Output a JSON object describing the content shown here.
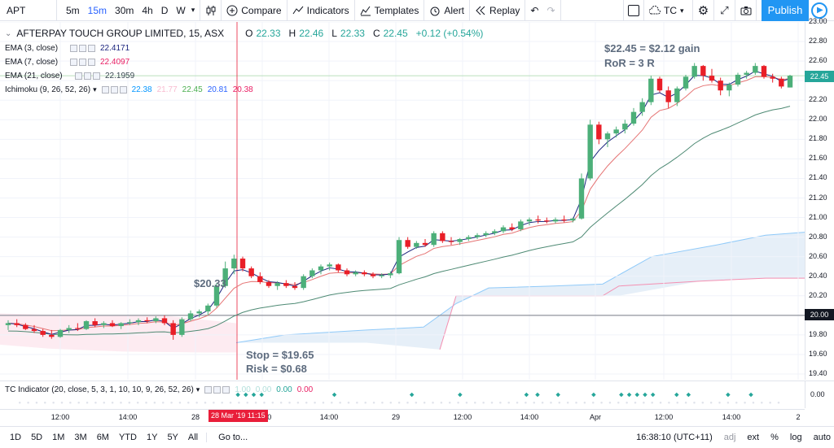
{
  "toolbar": {
    "symbol": "APT",
    "intervals": [
      "5m",
      "15m",
      "30m",
      "4h",
      "D",
      "W"
    ],
    "active_interval": "15m",
    "compare_label": "Compare",
    "indicators_label": "Indicators",
    "templates_label": "Templates",
    "alert_label": "Alert",
    "replay_label": "Replay",
    "account_label": "TC",
    "publish_label": "Publish"
  },
  "legend": {
    "title": "AFTERPAY TOUCH GROUP LIMITED, 15, ASX",
    "o_label": "O",
    "o": "22.33",
    "h_label": "H",
    "h": "22.46",
    "l_label": "L",
    "l": "22.33",
    "c_label": "C",
    "c": "22.45",
    "change": "+0.12 (+0.54%)",
    "ema3_label": "EMA (3, close)",
    "ema3": "22.4171",
    "ema3_color": "#1a237e",
    "ema7_label": "EMA (7, close)",
    "ema7": "22.4097",
    "ema7_color": "#e91e63",
    "ema21_label": "EMA (21, close)",
    "ema21": "22.1959",
    "ema21_color": "#37474f",
    "ichi_label": "Ichimoku (9, 26, 52, 26)",
    "ichi_vals": [
      "22.38",
      "21.77",
      "22.45",
      "20.81",
      "20.38"
    ],
    "ichi_colors": [
      "#0496ff",
      "#f8bbd0",
      "#4caf50",
      "#2962ff",
      "#e91e63"
    ]
  },
  "annotations": {
    "gain": "$22.45 = $2.12 gain",
    "ror": "RoR = 3 R",
    "entry": "$20.33",
    "stop": "Stop = $19.65",
    "risk": "Risk = $0.68"
  },
  "indicator": {
    "label": "TC Indicator (20, close, 5, 3, 1, 10, 10, 9, 26, 52, 26)",
    "vals": [
      "1.00",
      "0.00",
      "0.00",
      "0.00"
    ],
    "val_colors": [
      "#b2dfdb",
      "#b2dfdb",
      "#26a69a",
      "#e91e63"
    ],
    "axis": "0.00"
  },
  "price_axis": [
    "23.00",
    "22.80",
    "22.60",
    "22.40",
    "22.20",
    "22.00",
    "21.80",
    "21.60",
    "21.40",
    "21.20",
    "21.00",
    "20.80",
    "20.60",
    "20.40",
    "20.20",
    "20.00",
    "19.80",
    "19.60",
    "19.40"
  ],
  "price_tag_current": "22.45",
  "price_tag_line": "20.00",
  "time_axis": [
    "12:00",
    "14:00",
    "28",
    "10:00",
    "14:00",
    "29",
    "12:00",
    "14:00",
    "Apr",
    "12:00",
    "14:00",
    "2"
  ],
  "time_tag": "28 Mar '19  11:15",
  "bottom": {
    "ranges": [
      "1D",
      "5D",
      "1M",
      "3M",
      "6M",
      "YTD",
      "1Y",
      "5Y",
      "All"
    ],
    "goto": "Go to...",
    "clock": "16:38:10 (UTC+11)",
    "adj": "adj",
    "ext": "ext",
    "pct": "%",
    "log": "log",
    "auto": "auto"
  },
  "chart_data": {
    "type": "candlestick",
    "candles": [
      [
        19.9,
        19.95,
        19.85,
        19.92
      ],
      [
        19.92,
        19.96,
        19.88,
        19.9
      ],
      [
        19.9,
        19.92,
        19.85,
        19.86
      ],
      [
        19.86,
        19.9,
        19.82,
        19.84
      ],
      [
        19.84,
        19.86,
        19.78,
        19.8
      ],
      [
        19.8,
        19.85,
        19.76,
        19.78
      ],
      [
        19.78,
        19.86,
        19.77,
        19.85
      ],
      [
        19.85,
        19.9,
        19.82,
        19.87
      ],
      [
        19.87,
        19.92,
        19.84,
        19.86
      ],
      [
        19.86,
        19.95,
        19.85,
        19.94
      ],
      [
        19.94,
        19.97,
        19.88,
        19.9
      ],
      [
        19.9,
        19.94,
        19.87,
        19.92
      ],
      [
        19.92,
        19.95,
        19.88,
        19.89
      ],
      [
        19.89,
        19.93,
        19.86,
        19.92
      ],
      [
        19.92,
        19.96,
        19.9,
        19.93
      ],
      [
        19.93,
        19.97,
        19.9,
        19.95
      ],
      [
        19.95,
        19.98,
        19.92,
        19.94
      ],
      [
        19.94,
        19.99,
        19.92,
        19.97
      ],
      [
        19.97,
        20.0,
        19.9,
        19.92
      ],
      [
        19.92,
        19.95,
        19.75,
        19.8
      ],
      [
        19.8,
        19.98,
        19.78,
        19.96
      ],
      [
        19.96,
        20.05,
        19.94,
        20.02
      ],
      [
        20.02,
        20.06,
        19.98,
        20.04
      ],
      [
        20.04,
        20.12,
        20.0,
        20.1
      ],
      [
        20.1,
        20.33,
        20.08,
        20.3
      ],
      [
        20.3,
        20.55,
        20.28,
        20.48
      ],
      [
        20.48,
        20.62,
        20.42,
        20.58
      ],
      [
        20.58,
        20.6,
        20.45,
        20.48
      ],
      [
        20.48,
        20.5,
        20.38,
        20.4
      ],
      [
        20.4,
        20.44,
        20.32,
        20.34
      ],
      [
        20.34,
        20.36,
        20.28,
        20.3
      ],
      [
        20.3,
        20.35,
        20.26,
        20.33
      ],
      [
        20.33,
        20.36,
        20.28,
        20.3
      ],
      [
        20.3,
        20.34,
        20.26,
        20.28
      ],
      [
        20.28,
        20.42,
        20.26,
        20.4
      ],
      [
        20.4,
        20.48,
        20.38,
        20.46
      ],
      [
        20.46,
        20.52,
        20.42,
        20.5
      ],
      [
        20.5,
        20.54,
        20.46,
        20.52
      ],
      [
        20.52,
        20.53,
        20.44,
        20.46
      ],
      [
        20.46,
        20.48,
        20.4,
        20.42
      ],
      [
        20.42,
        20.46,
        20.4,
        20.44
      ],
      [
        20.44,
        20.46,
        20.4,
        20.42
      ],
      [
        20.42,
        20.44,
        20.38,
        20.4
      ],
      [
        20.4,
        20.43,
        20.38,
        20.41
      ],
      [
        20.41,
        20.45,
        20.38,
        20.43
      ],
      [
        20.43,
        20.8,
        20.42,
        20.77
      ],
      [
        20.77,
        20.8,
        20.68,
        20.7
      ],
      [
        20.7,
        20.76,
        20.68,
        20.74
      ],
      [
        20.74,
        20.78,
        20.7,
        20.72
      ],
      [
        20.72,
        20.86,
        20.7,
        20.84
      ],
      [
        20.84,
        20.86,
        20.74,
        20.76
      ],
      [
        20.76,
        20.8,
        20.72,
        20.75
      ],
      [
        20.75,
        20.79,
        20.72,
        20.78
      ],
      [
        20.78,
        20.82,
        20.76,
        20.8
      ],
      [
        20.8,
        20.84,
        20.78,
        20.82
      ],
      [
        20.82,
        20.86,
        20.8,
        20.84
      ],
      [
        20.84,
        20.88,
        20.82,
        20.86
      ],
      [
        20.86,
        20.92,
        20.84,
        20.9
      ],
      [
        20.9,
        20.94,
        20.86,
        20.88
      ],
      [
        20.88,
        20.98,
        20.86,
        20.96
      ],
      [
        20.96,
        21.0,
        20.92,
        20.98
      ],
      [
        20.98,
        21.02,
        20.94,
        20.97
      ],
      [
        20.97,
        21.0,
        20.94,
        20.96
      ],
      [
        20.96,
        21.0,
        20.94,
        20.98
      ],
      [
        20.98,
        21.02,
        20.95,
        20.97
      ],
      [
        20.97,
        21.0,
        20.95,
        20.99
      ],
      [
        20.99,
        21.45,
        20.98,
        21.4
      ],
      [
        21.4,
        22.0,
        21.38,
        21.95
      ],
      [
        21.95,
        21.98,
        21.75,
        21.8
      ],
      [
        21.8,
        21.88,
        21.72,
        21.86
      ],
      [
        21.86,
        21.93,
        21.82,
        21.9
      ],
      [
        21.9,
        22.0,
        21.86,
        21.96
      ],
      [
        21.96,
        22.12,
        21.94,
        22.08
      ],
      [
        22.08,
        22.22,
        22.04,
        22.18
      ],
      [
        22.18,
        22.45,
        22.15,
        22.42
      ],
      [
        22.42,
        22.44,
        22.28,
        22.3
      ],
      [
        22.3,
        22.34,
        22.12,
        22.18
      ],
      [
        22.18,
        22.34,
        22.14,
        22.32
      ],
      [
        22.32,
        22.46,
        22.3,
        22.44
      ],
      [
        22.44,
        22.58,
        22.42,
        22.55
      ],
      [
        22.55,
        22.56,
        22.4,
        22.45
      ],
      [
        22.45,
        22.52,
        22.38,
        22.4
      ],
      [
        22.4,
        22.43,
        22.25,
        22.3
      ],
      [
        22.3,
        22.38,
        22.24,
        22.36
      ],
      [
        22.36,
        22.48,
        22.34,
        22.46
      ],
      [
        22.46,
        22.5,
        22.42,
        22.48
      ],
      [
        22.48,
        22.58,
        22.46,
        22.55
      ],
      [
        22.55,
        22.56,
        22.42,
        22.44
      ],
      [
        22.44,
        22.47,
        22.38,
        22.42
      ],
      [
        22.42,
        22.44,
        22.32,
        22.34
      ],
      [
        22.33,
        22.46,
        22.33,
        22.45
      ]
    ],
    "xlabel": "",
    "ylabel": "",
    "ylim": [
      19.4,
      23.0
    ]
  }
}
